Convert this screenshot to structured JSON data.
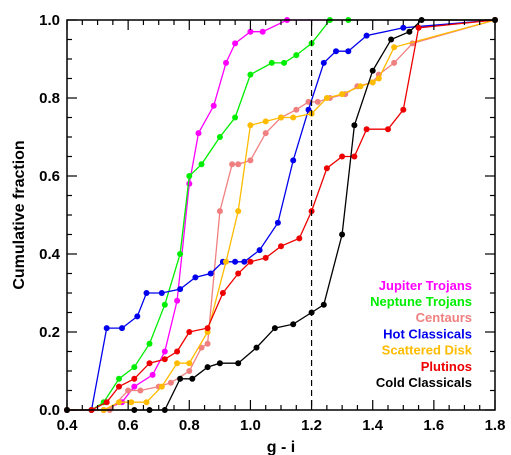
{
  "chart_data": {
    "type": "line",
    "xlabel": "g - i",
    "ylabel": "Cumulative fraction",
    "xlim": [
      0.4,
      1.8
    ],
    "ylim": [
      0.0,
      1.0
    ],
    "xticks": [
      0.4,
      0.6,
      0.8,
      1.0,
      1.2,
      1.4,
      1.6,
      1.8
    ],
    "xtick_labels": [
      "0.4",
      "0.6",
      "0.8",
      "1.0",
      "1.2",
      "1.4",
      "1.6",
      "1.8"
    ],
    "yticks": [
      0.0,
      0.2,
      0.4,
      0.6,
      0.8,
      1.0
    ],
    "ytick_labels": [
      "0.0",
      "0.2",
      "0.4",
      "0.6",
      "0.8",
      "1.0"
    ],
    "grid": false,
    "legend_position": "bottom-right",
    "reference_line": {
      "x": 1.2,
      "style": "dashed",
      "color": "#000000"
    },
    "series": [
      {
        "name": "Jupiter Trojans",
        "color": "#ff00ff",
        "x": [
          0.4,
          0.48,
          0.52,
          0.58,
          0.62,
          0.68,
          0.72,
          0.76,
          0.8,
          0.83,
          0.88,
          0.92,
          0.95,
          1.0,
          1.04,
          1.12,
          1.8
        ],
        "y": [
          0.0,
          0.0,
          0.0,
          0.02,
          0.06,
          0.09,
          0.15,
          0.28,
          0.58,
          0.71,
          0.78,
          0.89,
          0.94,
          0.97,
          0.97,
          1.0,
          1.0
        ]
      },
      {
        "name": "Neptune Trojans",
        "color": "#00ee00",
        "x": [
          0.4,
          0.48,
          0.52,
          0.57,
          0.62,
          0.67,
          0.72,
          0.77,
          0.8,
          0.84,
          0.9,
          0.95,
          1.0,
          1.07,
          1.11,
          1.15,
          1.2,
          1.26,
          1.32,
          1.8
        ],
        "y": [
          0.0,
          0.0,
          0.02,
          0.08,
          0.11,
          0.17,
          0.27,
          0.4,
          0.6,
          0.63,
          0.7,
          0.75,
          0.86,
          0.89,
          0.89,
          0.91,
          0.94,
          1.0,
          1.0,
          1.0
        ]
      },
      {
        "name": "Centaurs",
        "color": "#f08080",
        "x": [
          0.4,
          0.54,
          0.6,
          0.64,
          0.7,
          0.74,
          0.8,
          0.84,
          0.86,
          0.9,
          0.94,
          0.96,
          1.0,
          1.05,
          1.1,
          1.15,
          1.19,
          1.22,
          1.26,
          1.31,
          1.35,
          1.4,
          1.42,
          1.47,
          1.53,
          1.8
        ],
        "y": [
          0.0,
          0.0,
          0.05,
          0.05,
          0.06,
          0.07,
          0.1,
          0.16,
          0.17,
          0.51,
          0.63,
          0.63,
          0.64,
          0.71,
          0.75,
          0.77,
          0.79,
          0.79,
          0.8,
          0.81,
          0.83,
          0.84,
          0.86,
          0.89,
          0.94,
          1.0
        ]
      },
      {
        "name": "Hot Classicals",
        "color": "#0000ee",
        "x": [
          0.4,
          0.48,
          0.53,
          0.58,
          0.63,
          0.66,
          0.71,
          0.77,
          0.82,
          0.87,
          0.91,
          0.95,
          0.98,
          1.03,
          1.09,
          1.14,
          1.19,
          1.24,
          1.28,
          1.32,
          1.38,
          1.5,
          1.8
        ],
        "y": [
          0.0,
          0.0,
          0.21,
          0.21,
          0.24,
          0.3,
          0.3,
          0.31,
          0.34,
          0.35,
          0.38,
          0.38,
          0.38,
          0.41,
          0.48,
          0.64,
          0.77,
          0.89,
          0.92,
          0.92,
          0.96,
          0.98,
          1.0
        ]
      },
      {
        "name": "Scattered Disk",
        "color": "#ffbb00",
        "x": [
          0.4,
          0.52,
          0.57,
          0.61,
          0.66,
          0.71,
          0.76,
          0.8,
          0.86,
          0.92,
          0.96,
          1.0,
          1.05,
          1.1,
          1.14,
          1.2,
          1.25,
          1.3,
          1.36,
          1.4,
          1.42,
          1.47,
          1.8
        ],
        "y": [
          0.0,
          0.0,
          0.02,
          0.02,
          0.02,
          0.06,
          0.12,
          0.12,
          0.2,
          0.38,
          0.51,
          0.73,
          0.74,
          0.75,
          0.75,
          0.76,
          0.8,
          0.81,
          0.83,
          0.84,
          0.85,
          0.93,
          1.0
        ]
      },
      {
        "name": "Plutinos",
        "color": "#ee0000",
        "x": [
          0.4,
          0.48,
          0.53,
          0.57,
          0.62,
          0.67,
          0.72,
          0.76,
          0.8,
          0.86,
          0.91,
          0.96,
          1.0,
          1.05,
          1.1,
          1.16,
          1.2,
          1.25,
          1.3,
          1.34,
          1.38,
          1.45,
          1.5,
          1.55,
          1.8
        ],
        "y": [
          0.0,
          0.0,
          0.02,
          0.06,
          0.08,
          0.12,
          0.13,
          0.15,
          0.2,
          0.21,
          0.3,
          0.35,
          0.38,
          0.39,
          0.42,
          0.44,
          0.51,
          0.62,
          0.65,
          0.65,
          0.72,
          0.72,
          0.77,
          0.98,
          1.0
        ]
      },
      {
        "name": "Cold Classicals",
        "color": "#000000",
        "x": [
          0.4,
          0.62,
          0.67,
          0.72,
          0.77,
          0.81,
          0.86,
          0.9,
          0.96,
          1.02,
          1.08,
          1.14,
          1.2,
          1.24,
          1.3,
          1.34,
          1.4,
          1.46,
          1.52,
          1.56,
          1.8
        ],
        "y": [
          0.0,
          0.0,
          0.0,
          0.0,
          0.08,
          0.08,
          0.11,
          0.12,
          0.12,
          0.16,
          0.21,
          0.22,
          0.25,
          0.27,
          0.45,
          0.73,
          0.87,
          0.95,
          0.97,
          1.0,
          1.0
        ]
      }
    ]
  }
}
